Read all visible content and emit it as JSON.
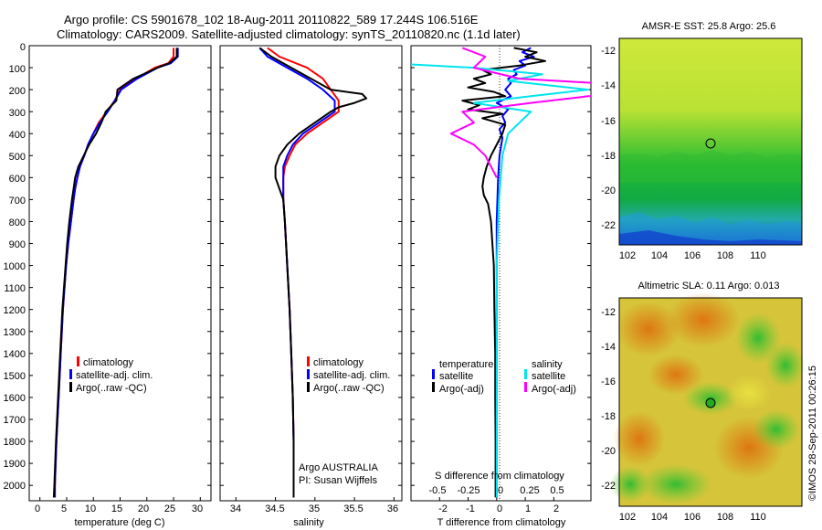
{
  "header": {
    "line1": "Argo profile: CS 5901678_102 18-Aug-2011 20110822_589 17.244S 106.516E",
    "line2": "Climatology: CARS2009. Satellite-adjusted climatology: synTS_20110820.nc (1.1d later)"
  },
  "depth_ticks": [
    "0",
    "100",
    "200",
    "300",
    "400",
    "500",
    "600",
    "700",
    "800",
    "900",
    "1000",
    "1100",
    "1200",
    "1300",
    "1400",
    "1500",
    "1600",
    "1700",
    "1800",
    "1900",
    "2000"
  ],
  "watermark": "©IMOS 28-Sep-2011 00:26:15",
  "colors": {
    "climatology": "#ff0000",
    "satellite": "#0000ff",
    "argo": "#000000",
    "salinity_sat": "#00e5ee",
    "salinity_argo": "#ff00ff"
  },
  "chart_data": [
    {
      "type": "line",
      "name": "temperature-profile",
      "xlabel": "temperature (deg C)",
      "ylabel": "depth",
      "xlim": [
        -2,
        32
      ],
      "ylim": [
        2070,
        0
      ],
      "x_ticks": [
        "0",
        "5",
        "10",
        "15",
        "20",
        "25",
        "30"
      ],
      "legend": [
        "climatology",
        "satellite-adj. clim.",
        "Argo(..raw -QC)"
      ],
      "series": [
        {
          "name": "climatology",
          "color": "#ff0000",
          "depth": [
            10,
            50,
            80,
            100,
            150,
            200,
            250,
            300,
            350,
            400,
            450,
            500,
            550,
            600,
            650,
            700,
            800,
            900,
            1000,
            1200,
            1400,
            1600,
            1800,
            2000,
            2055
          ],
          "values": [
            25.0,
            25.0,
            24.0,
            21.5,
            18.0,
            15.0,
            14.0,
            12.5,
            11.0,
            10.0,
            9.0,
            8.3,
            7.5,
            7.0,
            6.6,
            6.3,
            5.8,
            5.3,
            4.9,
            4.3,
            3.9,
            3.5,
            3.1,
            2.8,
            2.8
          ]
        },
        {
          "name": "satellite-adj. clim.",
          "color": "#0000ff",
          "depth": [
            10,
            50,
            80,
            100,
            150,
            200,
            250,
            300,
            350,
            400,
            450,
            500,
            550,
            600,
            650,
            700,
            800,
            900,
            1000,
            1200,
            1400,
            1600,
            1800,
            2000,
            2055
          ],
          "values": [
            25.8,
            25.8,
            24.5,
            22.0,
            18.2,
            15.2,
            14.0,
            12.7,
            11.2,
            10.0,
            9.0,
            8.3,
            7.5,
            7.0,
            6.6,
            6.3,
            5.8,
            5.3,
            4.9,
            4.3,
            3.9,
            3.5,
            3.1,
            2.8,
            2.8
          ]
        },
        {
          "name": "Argo(..raw -QC)",
          "color": "#000000",
          "depth": [
            10,
            50,
            80,
            100,
            150,
            200,
            250,
            300,
            320,
            350,
            400,
            450,
            500,
            550,
            600,
            650,
            700,
            800,
            900,
            1000,
            1200,
            1400,
            1600,
            1800,
            2000,
            2055
          ],
          "values": [
            25.6,
            25.6,
            24.2,
            22.0,
            17.5,
            14.5,
            14.3,
            12.3,
            12.0,
            11.5,
            10.5,
            9.2,
            8.2,
            7.2,
            6.6,
            6.3,
            6.0,
            5.5,
            5.1,
            4.8,
            4.2,
            3.8,
            3.4,
            3.0,
            2.7,
            2.6
          ]
        }
      ]
    },
    {
      "type": "line",
      "name": "salinity-profile",
      "xlabel": "salinity",
      "ylabel": "depth",
      "xlim": [
        33.8,
        36.1
      ],
      "ylim": [
        2070,
        0
      ],
      "x_ticks": [
        "34",
        "34.5",
        "35",
        "35.5",
        "36"
      ],
      "legend": [
        "climatology",
        "satellite-adj. clim.",
        "Argo(..raw -QC)"
      ],
      "annotation": [
        "Argo AUSTRALIA",
        "PI: Susan Wijffels"
      ],
      "series": [
        {
          "name": "climatology",
          "color": "#ff0000",
          "depth": [
            10,
            50,
            100,
            150,
            200,
            250,
            300,
            350,
            400,
            450,
            500,
            550,
            600,
            650,
            700,
            800,
            1000,
            1200,
            1400,
            1600,
            1800,
            2000,
            2055
          ],
          "values": [
            34.4,
            34.55,
            34.9,
            35.1,
            35.2,
            35.3,
            35.3,
            35.1,
            34.9,
            34.75,
            34.68,
            34.62,
            34.6,
            34.6,
            34.6,
            34.62,
            34.65,
            34.68,
            34.7,
            34.72,
            34.73,
            34.73,
            34.73
          ]
        },
        {
          "name": "satellite-adj. clim.",
          "color": "#0000ff",
          "depth": [
            10,
            50,
            100,
            150,
            200,
            250,
            300,
            350,
            400,
            450,
            500,
            550,
            600,
            650,
            700,
            800,
            1000,
            1200,
            1400,
            1600,
            1800,
            2000,
            2055
          ],
          "values": [
            34.3,
            34.4,
            34.65,
            34.9,
            35.1,
            35.25,
            35.25,
            35.05,
            34.85,
            34.72,
            34.65,
            34.6,
            34.6,
            34.6,
            34.6,
            34.62,
            34.65,
            34.68,
            34.7,
            34.72,
            34.73,
            34.73,
            34.73
          ]
        },
        {
          "name": "Argo(..raw -QC)",
          "color": "#000000",
          "depth": [
            10,
            50,
            100,
            150,
            200,
            220,
            240,
            260,
            280,
            300,
            350,
            400,
            450,
            500,
            550,
            600,
            650,
            700,
            800,
            1000,
            1200,
            1400,
            1600,
            1800,
            2000,
            2055
          ],
          "values": [
            34.3,
            34.45,
            34.7,
            34.95,
            35.2,
            35.6,
            35.65,
            35.5,
            35.3,
            35.2,
            35.0,
            34.8,
            34.65,
            34.55,
            34.5,
            34.5,
            34.55,
            34.6,
            34.62,
            34.65,
            34.68,
            34.7,
            34.72,
            34.73,
            34.73,
            34.73
          ]
        }
      ]
    },
    {
      "type": "line",
      "name": "difference-profile",
      "xlabel": "T difference from climatology",
      "xlabel_top": "S difference from climatology",
      "xlim": [
        -3,
        3.3
      ],
      "ylim": [
        2070,
        0
      ],
      "x_ticks": [
        "-2",
        "-1",
        "0",
        "1",
        "2"
      ],
      "x_ticks_s": [
        "-0.5",
        "-0.25",
        "0",
        "0.25",
        "0.5"
      ],
      "legend_titles": [
        "temperature",
        "salinity"
      ],
      "legend": [
        "satellite",
        "Argo(-adj)",
        "satellite",
        "Argo(-adj)"
      ],
      "series": [
        {
          "name": "temperature satellite",
          "color": "#0000ff",
          "depth": [
            10,
            30,
            50,
            70,
            90,
            110,
            130,
            150,
            170,
            200,
            230,
            260,
            290,
            320,
            350,
            380,
            420,
            500,
            600,
            800,
            1000,
            1400,
            1800,
            2055
          ],
          "values": [
            1.2,
            0.9,
            1.3,
            0.8,
            1.0,
            0.6,
            0.7,
            0.4,
            0.5,
            0.3,
            0.5,
            0.0,
            0.4,
            0.2,
            0.3,
            0.1,
            0.2,
            0.1,
            0.05,
            0.0,
            0.0,
            0.0,
            0.0,
            0.0
          ]
        },
        {
          "name": "temperature Argo(-adj)",
          "color": "#000000",
          "depth": [
            10,
            30,
            50,
            70,
            90,
            110,
            130,
            150,
            170,
            190,
            210,
            230,
            250,
            270,
            290,
            310,
            330,
            360,
            400,
            450,
            500,
            550,
            600,
            640,
            680,
            720,
            760,
            800,
            900,
            1000,
            1200,
            1400,
            1600,
            1800,
            2000,
            2055
          ],
          "values": [
            0.6,
            1.4,
            1.0,
            1.7,
            0.8,
            -0.5,
            -0.2,
            -0.8,
            -0.4,
            -1.0,
            -0.1,
            0.3,
            -1.2,
            -0.6,
            -1.0,
            0.2,
            -0.5,
            0.3,
            0.2,
            0.0,
            -0.2,
            -0.35,
            -0.45,
            -0.5,
            -0.45,
            -0.3,
            -0.25,
            -0.2,
            -0.15,
            -0.1,
            -0.08,
            -0.05,
            -0.05,
            -0.04,
            -0.04,
            -0.04
          ]
        },
        {
          "name": "salinity satellite",
          "color": "#00e5ee",
          "depth": [
            10,
            40,
            70,
            100,
            130,
            160,
            200,
            230,
            260,
            300,
            400,
            500,
            700,
            1000,
            1400,
            1800,
            2055
          ],
          "values": [
            -1.5,
            -0.8,
            -1.3,
            -0.2,
            0.4,
            0.1,
            0.8,
            0.3,
            -0.2,
            0.3,
            0.1,
            0.05,
            0.02,
            0.0,
            0.0,
            0.0,
            0.0
          ]
        },
        {
          "name": "salinity Argo(-adj)",
          "color": "#ff00ff",
          "depth": [
            10,
            50,
            100,
            150,
            180,
            200,
            210,
            230,
            260,
            300,
            350,
            400,
            450,
            500,
            550,
            600
          ],
          "values": [
            -0.3,
            -0.1,
            -0.2,
            0.2,
            1.2,
            2.4,
            2.2,
            0.8,
            0.3,
            -0.3,
            -0.2,
            -0.4,
            -0.2,
            -0.1,
            -0.05,
            0.0
          ]
        }
      ]
    },
    {
      "type": "heatmap",
      "name": "sst-map",
      "title": "AMSR-E SST: 25.8 Argo: 25.6",
      "x_ticks": [
        "102",
        "104",
        "106",
        "108",
        "110"
      ],
      "y_ticks": [
        "-12",
        "-14",
        "-16",
        "-18",
        "-20",
        "-22"
      ],
      "xlim": [
        101,
        112
      ],
      "ylim": [
        -23.3,
        -11.3
      ],
      "argo_position": [
        106.516,
        -17.244
      ]
    },
    {
      "type": "heatmap",
      "name": "sla-map",
      "title": "Altimetric SLA: 0.11 Argo: 0.013",
      "x_ticks": [
        "102",
        "104",
        "106",
        "108",
        "110"
      ],
      "y_ticks": [
        "-12",
        "-14",
        "-16",
        "-18",
        "-20",
        "-22"
      ],
      "xlim": [
        101,
        112
      ],
      "ylim": [
        -23.3,
        -11.3
      ],
      "argo_position": [
        106.516,
        -17.244
      ]
    }
  ]
}
